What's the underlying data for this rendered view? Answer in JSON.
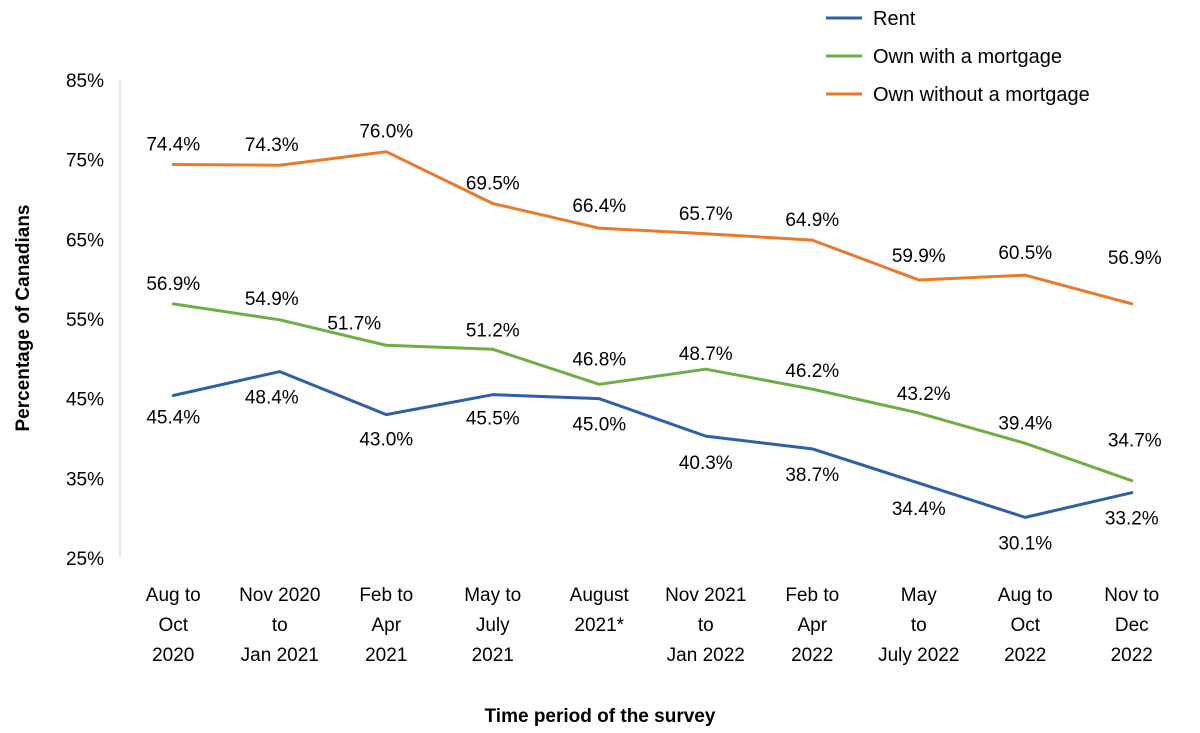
{
  "chart_data": {
    "type": "line",
    "title": "",
    "xlabel": "Time period of the survey",
    "ylabel": "Percentage of Canadians",
    "ylim": [
      25,
      85
    ],
    "yticks": [
      25,
      35,
      45,
      55,
      65,
      75,
      85
    ],
    "ytick_labels": [
      "25%",
      "35%",
      "45%",
      "55%",
      "65%",
      "75%",
      "85%"
    ],
    "grid": false,
    "legend_position": "top-right",
    "categories": [
      [
        "Aug to",
        "Oct",
        "2020"
      ],
      [
        "Nov 2020",
        "to",
        "Jan 2021"
      ],
      [
        "Feb to",
        "Apr",
        "2021"
      ],
      [
        "May to",
        "July",
        "2021"
      ],
      [
        "August",
        "2021*"
      ],
      [
        "Nov 2021",
        "to",
        "Jan 2022"
      ],
      [
        "Feb to",
        "Apr",
        "2022"
      ],
      [
        "May",
        "to",
        "July 2022"
      ],
      [
        "Aug to",
        "Oct",
        "2022"
      ],
      [
        "Nov to",
        "Dec",
        "2022"
      ]
    ],
    "series": [
      {
        "name": "Rent",
        "color": "#2E5FA8",
        "values": [
          45.4,
          48.4,
          43.0,
          45.5,
          45.0,
          40.3,
          38.7,
          34.4,
          30.1,
          33.2
        ],
        "labels": [
          "45.4%",
          "48.4%",
          "43.0%",
          "45.5%",
          "45.0%",
          "40.3%",
          "38.7%",
          "34.4%",
          "30.1%",
          "33.2%"
        ]
      },
      {
        "name": "Own with a mortgage",
        "color": "#70AD47",
        "values": [
          56.9,
          54.9,
          51.7,
          51.2,
          46.8,
          48.7,
          46.2,
          43.2,
          39.4,
          34.7
        ],
        "labels": [
          "56.9%",
          "54.9%",
          "51.7%",
          "51.2%",
          "46.8%",
          "48.7%",
          "46.2%",
          "43.2%",
          "39.4%",
          "34.7%"
        ]
      },
      {
        "name": "Own without a mortgage",
        "color": "#E97A2C",
        "values": [
          74.4,
          74.3,
          76.0,
          69.5,
          66.4,
          65.7,
          64.9,
          59.9,
          60.5,
          56.9
        ],
        "labels": [
          "74.4%",
          "74.3%",
          "76.0%",
          "69.5%",
          "66.4%",
          "65.7%",
          "64.9%",
          "59.9%",
          "60.5%",
          "56.9%"
        ]
      }
    ]
  }
}
